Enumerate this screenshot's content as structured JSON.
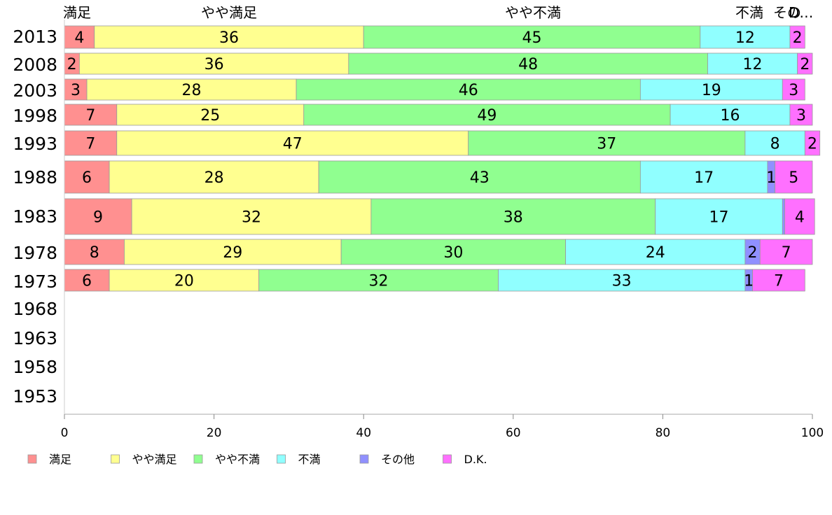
{
  "chart_data": {
    "type": "bar",
    "orientation": "horizontal",
    "stacked": true,
    "percent": true,
    "categories": [
      "2013",
      "2008",
      "2003",
      "1998",
      "1993",
      "1988",
      "1983",
      "1978",
      "1973",
      "1968",
      "1963",
      "1958",
      "1953"
    ],
    "top_labels": [
      "満足",
      "やや満足",
      "やや不満",
      "不満",
      "その他",
      "D.K."
    ],
    "series": [
      {
        "name": "満足",
        "color": "#ff9090",
        "values": [
          4,
          2,
          3,
          7,
          7,
          6,
          9,
          8,
          6,
          null,
          null,
          null,
          null
        ]
      },
      {
        "name": "やや満足",
        "color": "#ffff90",
        "values": [
          36,
          36,
          28,
          25,
          47,
          28,
          32,
          29,
          20,
          null,
          null,
          null,
          null
        ]
      },
      {
        "name": "やや不満",
        "color": "#90ff90",
        "values": [
          45,
          48,
          46,
          49,
          37,
          43,
          38,
          30,
          32,
          null,
          null,
          null,
          null
        ]
      },
      {
        "name": "不満",
        "color": "#90ffff",
        "values": [
          12,
          12,
          19,
          16,
          8,
          17,
          17,
          24,
          33,
          null,
          null,
          null,
          null
        ]
      },
      {
        "name": "その他",
        "color": "#9090ff",
        "values": [
          0,
          0,
          0,
          0,
          0,
          1,
          0.3,
          2,
          1,
          null,
          null,
          null,
          null
        ]
      },
      {
        "name": "D.K.",
        "color": "#ff70ff",
        "values": [
          2,
          2,
          3,
          3,
          2,
          5,
          4,
          7,
          7,
          null,
          null,
          null,
          null
        ]
      }
    ],
    "data_labels": [
      [
        "4",
        "36",
        "45",
        "12",
        "",
        "2"
      ],
      [
        "2",
        "36",
        "48",
        "12",
        "",
        "2"
      ],
      [
        "3",
        "28",
        "46",
        "19",
        "",
        "3"
      ],
      [
        "7",
        "25",
        "49",
        "16",
        "",
        "3"
      ],
      [
        "7",
        "47",
        "37",
        "8",
        "",
        "2"
      ],
      [
        "6",
        "28",
        "43",
        "17",
        "1",
        "5"
      ],
      [
        "9",
        "32",
        "38",
        "17",
        "",
        "4"
      ],
      [
        "8",
        "29",
        "30",
        "24",
        "2",
        "7"
      ],
      [
        "6",
        "20",
        "32",
        "33",
        "1",
        "7"
      ],
      [
        "",
        "",
        "",
        "",
        "",
        ""
      ],
      [
        "",
        "",
        "",
        "",
        "",
        ""
      ],
      [
        "",
        "",
        "",
        "",
        "",
        ""
      ],
      [
        "",
        "",
        "",
        "",
        "",
        ""
      ]
    ],
    "xlim": [
      0,
      100
    ],
    "xticks": [
      "0",
      "20",
      "40",
      "60",
      "80",
      "100"
    ],
    "grid": false,
    "legend_position": "bottom"
  }
}
